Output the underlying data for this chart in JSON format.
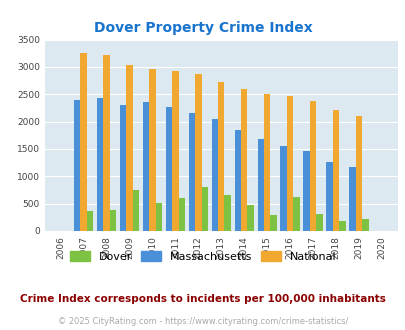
{
  "title": "Dover Property Crime Index",
  "years": [
    2006,
    2007,
    2008,
    2009,
    2010,
    2011,
    2012,
    2013,
    2014,
    2015,
    2016,
    2017,
    2018,
    2019,
    2020
  ],
  "dover": [
    0,
    370,
    380,
    750,
    510,
    610,
    800,
    650,
    480,
    290,
    620,
    320,
    175,
    215,
    0
  ],
  "massachusetts": [
    0,
    2400,
    2430,
    2310,
    2360,
    2260,
    2160,
    2050,
    1840,
    1680,
    1560,
    1460,
    1270,
    1175,
    0
  ],
  "national": [
    0,
    3250,
    3210,
    3040,
    2960,
    2920,
    2870,
    2730,
    2600,
    2510,
    2470,
    2370,
    2210,
    2110,
    0
  ],
  "dover_color": "#7dc242",
  "mass_color": "#4a90d9",
  "national_color": "#f0a830",
  "bg_color": "#dce9f0",
  "title_color": "#1874cd",
  "ylabel_max": 3500,
  "note_text": "Crime Index corresponds to incidents per 100,000 inhabitants",
  "copyright_text": "© 2025 CityRating.com - https://www.cityrating.com/crime-statistics/",
  "note_color": "#8b0000",
  "copyright_color": "#aaaaaa",
  "bar_width": 0.28
}
